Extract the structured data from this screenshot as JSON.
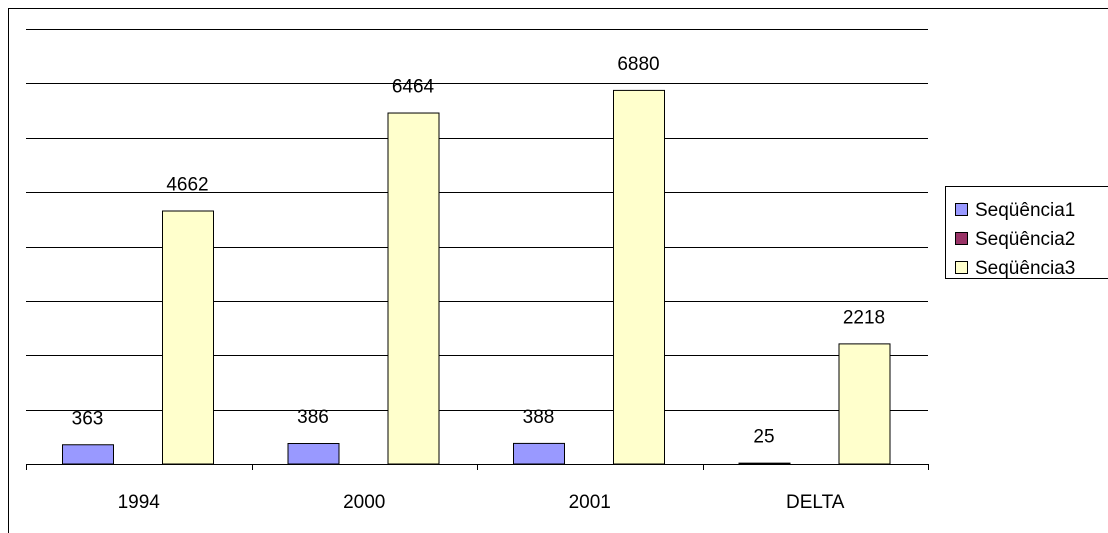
{
  "colors": {
    "series1": "#9999ff",
    "series2": "#993366",
    "series3": "#ffffcc",
    "gridline": "#000000",
    "axis": "#000000"
  },
  "legend": {
    "placement": "right",
    "items": [
      "Seqüência1",
      "Seqüência2",
      "Seqüência3"
    ]
  },
  "chart_data": {
    "type": "bar",
    "title": "",
    "xlabel": "",
    "ylabel": "",
    "categories": [
      "1994",
      "2000",
      "2001",
      "DELTA"
    ],
    "series": [
      {
        "name": "Seqüência1",
        "values": [
          363,
          386,
          388,
          25
        ]
      },
      {
        "name": "Seqüência2",
        "values": [
          0,
          0,
          0,
          0
        ]
      },
      {
        "name": "Seqüência3",
        "values": [
          4662,
          6464,
          6880,
          2218
        ]
      }
    ],
    "data_labels": [
      {
        "series": 0,
        "index": 0,
        "text": "363"
      },
      {
        "series": 2,
        "index": 0,
        "text": "4662"
      },
      {
        "series": 0,
        "index": 1,
        "text": "386"
      },
      {
        "series": 2,
        "index": 1,
        "text": "6464"
      },
      {
        "series": 0,
        "index": 2,
        "text": "388"
      },
      {
        "series": 2,
        "index": 2,
        "text": "6880"
      },
      {
        "series": 0,
        "index": 3,
        "text": "25"
      },
      {
        "series": 2,
        "index": 3,
        "text": "2218"
      }
    ],
    "ylim": [
      0,
      8000
    ],
    "y_tick_step": 1000,
    "grid": true,
    "legend_placement": "right"
  }
}
